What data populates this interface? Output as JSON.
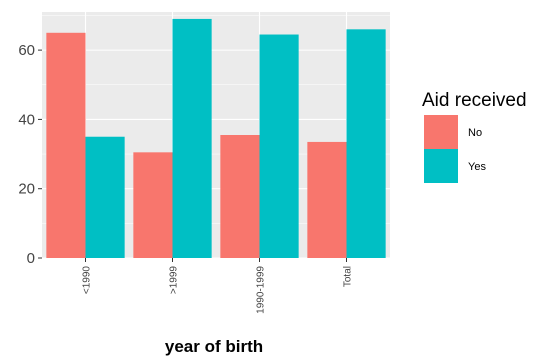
{
  "chart_data": {
    "type": "bar",
    "categories": [
      "<1990",
      ">1999",
      "1990-1999",
      "Total"
    ],
    "series": [
      {
        "name": "No",
        "color": "#F8766D",
        "values": [
          65,
          30.5,
          35.5,
          33.5
        ]
      },
      {
        "name": "Yes",
        "color": "#00BFC4",
        "values": [
          35,
          69,
          64.5,
          66
        ]
      }
    ],
    "xlabel": "year of birth",
    "ylabel": "",
    "ylim": [
      0,
      71
    ],
    "yticks": [
      0,
      20,
      40,
      60
    ],
    "grid": true,
    "legend": {
      "title": "Aid received",
      "placement": "right"
    },
    "panel_background": "#EBEBEB"
  }
}
